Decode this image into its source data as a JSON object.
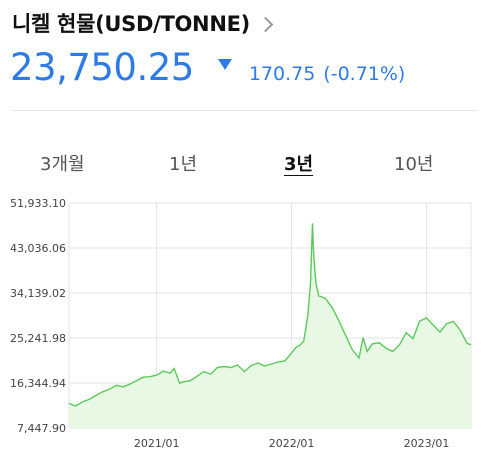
{
  "header": {
    "title": "니켈 현물(USD/TONNE)",
    "price": "23,750.25",
    "change": "170.75",
    "change_pct": "(-0.71%)",
    "direction_icon": "triangle-down-icon",
    "accent_color": "#2f7be6"
  },
  "tabs": [
    {
      "label": "3개월",
      "active": false
    },
    {
      "label": "1년",
      "active": false
    },
    {
      "label": "3년",
      "active": true
    },
    {
      "label": "10년",
      "active": false
    }
  ],
  "chart_data": {
    "type": "area",
    "yticks": [
      "51,933.10",
      "43,036.06",
      "34,139.02",
      "25,241.98",
      "16,344.94",
      "7,447.90"
    ],
    "xticks": [
      "2021/01",
      "2022/01",
      "2023/01"
    ],
    "ylim": [
      7447.9,
      51933.1
    ],
    "xlim": [
      2020.35,
      2023.33
    ],
    "line_color": "#5cc85c",
    "fill_color": "#e8f8e4",
    "grid": true,
    "x": [
      2020.35,
      2020.4,
      2020.45,
      2020.5,
      2020.55,
      2020.6,
      2020.65,
      2020.7,
      2020.75,
      2020.8,
      2020.85,
      2020.9,
      2020.95,
      2021.0,
      2021.05,
      2021.1,
      2021.13,
      2021.17,
      2021.2,
      2021.25,
      2021.3,
      2021.35,
      2021.4,
      2021.45,
      2021.5,
      2021.55,
      2021.6,
      2021.65,
      2021.7,
      2021.75,
      2021.8,
      2021.85,
      2021.9,
      2021.95,
      2022.0,
      2022.03,
      2022.06,
      2022.09,
      2022.12,
      2022.14,
      2022.155,
      2022.165,
      2022.18,
      2022.2,
      2022.25,
      2022.3,
      2022.35,
      2022.4,
      2022.45,
      2022.5,
      2022.53,
      2022.56,
      2022.6,
      2022.65,
      2022.7,
      2022.75,
      2022.8,
      2022.85,
      2022.9,
      2022.95,
      2023.0,
      2023.05,
      2023.1,
      2023.15,
      2023.2,
      2023.25,
      2023.3,
      2023.33
    ],
    "values": [
      12300,
      11800,
      12600,
      13100,
      13900,
      14600,
      15100,
      15900,
      15600,
      16100,
      16800,
      17500,
      17600,
      17900,
      18700,
      18300,
      19200,
      16300,
      16600,
      16800,
      17700,
      18600,
      18100,
      19400,
      19600,
      19400,
      19900,
      18600,
      19800,
      20300,
      19700,
      20100,
      20500,
      20700,
      22300,
      23300,
      23800,
      24600,
      29700,
      36100,
      47900,
      41300,
      36200,
      33600,
      33100,
      31300,
      28700,
      25800,
      22900,
      21300,
      25300,
      22600,
      24100,
      24300,
      23200,
      22600,
      23900,
      26300,
      25100,
      28600,
      29200,
      27800,
      26400,
      28100,
      28500,
      26800,
      24200,
      23900
    ]
  }
}
